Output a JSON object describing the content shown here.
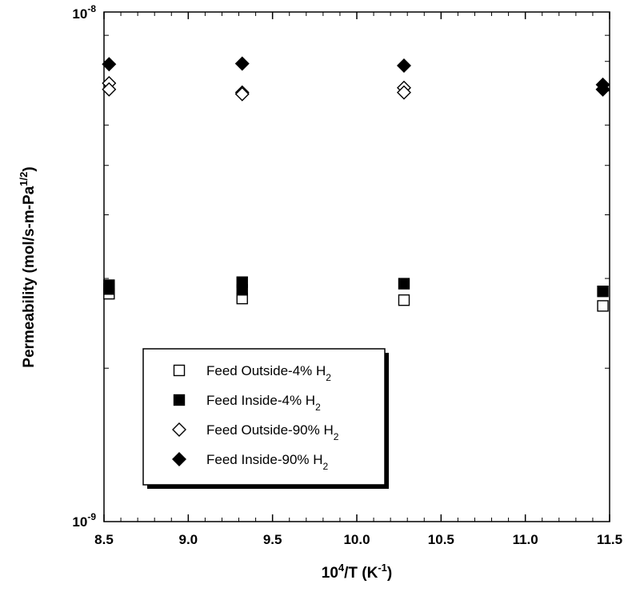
{
  "chart_data": {
    "type": "scatter",
    "x_label": {
      "base": "10",
      "sup": "4",
      "mid": "/T (K",
      "sup2": "-1",
      "tail": ")"
    },
    "y_label": {
      "main": "Permeability (mol/s-m-Pa",
      "sup": "1/2",
      "tail": ")"
    },
    "x_range": [
      8.5,
      11.5
    ],
    "y_range": [
      1e-09,
      1e-08
    ],
    "y_scale": "log",
    "x_ticks": [
      "8.5",
      "9.0",
      "9.5",
      "10.0",
      "10.5",
      "11.0",
      "11.5"
    ],
    "y_tick_labels": [
      {
        "base": "10",
        "sup": "-9"
      },
      {
        "base": "10",
        "sup": "-8"
      }
    ],
    "legend_position": "bottom-left",
    "series": [
      {
        "name": "Feed Outside-4% H",
        "sub": "2",
        "marker": "square-open",
        "points": [
          [
            8.53,
            2.8e-09
          ],
          [
            9.32,
            2.74e-09
          ],
          [
            10.28,
            2.72e-09
          ],
          [
            11.46,
            2.65e-09
          ]
        ]
      },
      {
        "name": "Feed Inside-4% H",
        "sub": "2",
        "marker": "square-filled",
        "points": [
          [
            8.53,
            2.91e-09
          ],
          [
            8.53,
            2.86e-09
          ],
          [
            9.32,
            2.95e-09
          ],
          [
            9.32,
            2.85e-09
          ],
          [
            10.28,
            2.93e-09
          ],
          [
            11.46,
            2.83e-09
          ]
        ]
      },
      {
        "name": "Feed Outside-90% H",
        "sub": "2",
        "marker": "diamond-open",
        "points": [
          [
            8.53,
            7.25e-09
          ],
          [
            8.53,
            7.05e-09
          ],
          [
            9.32,
            6.95e-09
          ],
          [
            9.32,
            6.9e-09
          ],
          [
            10.28,
            7.1e-09
          ],
          [
            10.28,
            6.95e-09
          ],
          [
            11.46,
            7.05e-09
          ]
        ]
      },
      {
        "name": "Feed Inside-90% H",
        "sub": "2",
        "marker": "diamond-filled",
        "points": [
          [
            8.53,
            7.9e-09
          ],
          [
            9.32,
            7.92e-09
          ],
          [
            10.28,
            7.85e-09
          ],
          [
            11.46,
            7.2e-09
          ],
          [
            11.46,
            7.05e-09
          ]
        ]
      }
    ]
  }
}
